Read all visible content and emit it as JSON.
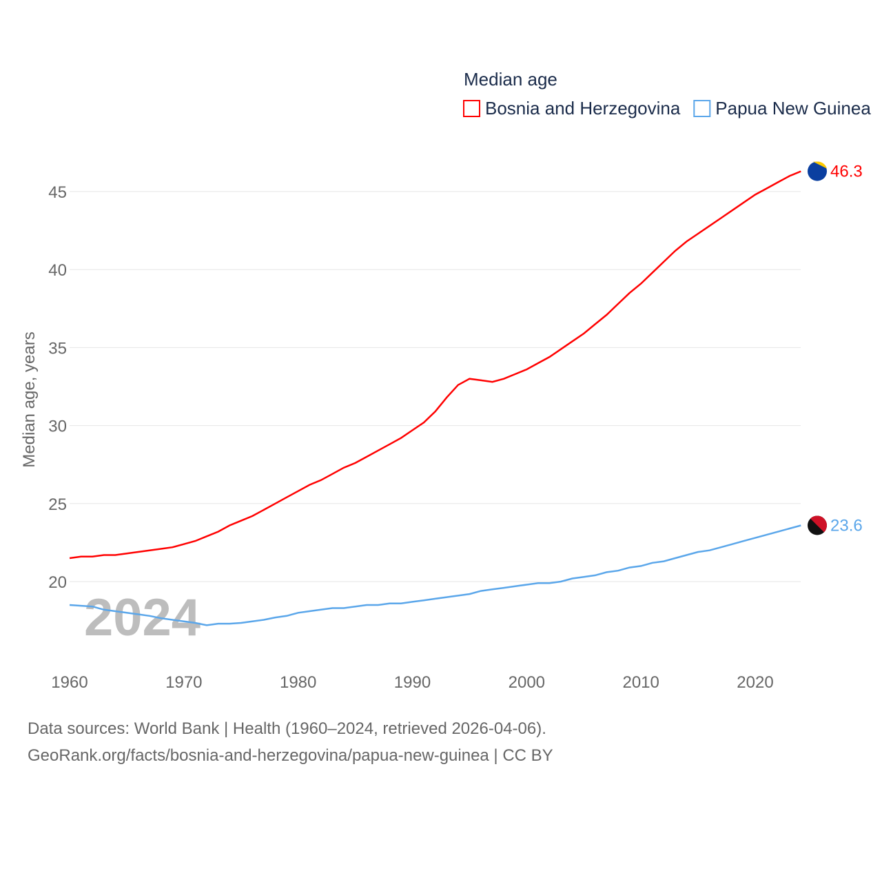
{
  "chart_data": {
    "type": "line",
    "title": "Median age",
    "ylabel": "Median age, years",
    "xlabel": "",
    "ylim": [
      15.5,
      47.5
    ],
    "xlim": [
      1960,
      2024
    ],
    "grid": true,
    "legend_placement": "top-right",
    "yticks": [
      20,
      25,
      30,
      35,
      40,
      45
    ],
    "xticks": [
      1960,
      1970,
      1980,
      1990,
      2000,
      2010,
      2020
    ],
    "watermark": "2024",
    "x": [
      1960,
      1961,
      1962,
      1963,
      1964,
      1965,
      1966,
      1967,
      1968,
      1969,
      1970,
      1971,
      1972,
      1973,
      1974,
      1975,
      1976,
      1977,
      1978,
      1979,
      1980,
      1981,
      1982,
      1983,
      1984,
      1985,
      1986,
      1987,
      1988,
      1989,
      1990,
      1991,
      1992,
      1993,
      1994,
      1995,
      1996,
      1997,
      1998,
      1999,
      2000,
      2001,
      2002,
      2003,
      2004,
      2005,
      2006,
      2007,
      2008,
      2009,
      2010,
      2011,
      2012,
      2013,
      2014,
      2015,
      2016,
      2017,
      2018,
      2019,
      2020,
      2021,
      2022,
      2023,
      2024
    ],
    "series": [
      {
        "name": "Bosnia and Herzegovina",
        "color": "#ff0000",
        "end_label": "46.3",
        "values": [
          21.5,
          21.6,
          21.6,
          21.7,
          21.7,
          21.8,
          21.9,
          22.0,
          22.1,
          22.2,
          22.4,
          22.6,
          22.9,
          23.2,
          23.6,
          23.9,
          24.2,
          24.6,
          25.0,
          25.4,
          25.8,
          26.2,
          26.5,
          26.9,
          27.3,
          27.6,
          28.0,
          28.4,
          28.8,
          29.2,
          29.7,
          30.2,
          30.9,
          31.8,
          32.6,
          33.0,
          32.9,
          32.8,
          33.0,
          33.3,
          33.6,
          34.0,
          34.4,
          34.9,
          35.4,
          35.9,
          36.5,
          37.1,
          37.8,
          38.5,
          39.1,
          39.8,
          40.5,
          41.2,
          41.8,
          42.3,
          42.8,
          43.3,
          43.8,
          44.3,
          44.8,
          45.2,
          45.6,
          46.0,
          46.3
        ]
      },
      {
        "name": "Papua New Guinea",
        "color": "#5aa6ea",
        "end_label": "23.6",
        "values": [
          18.5,
          18.45,
          18.4,
          18.2,
          18.1,
          18.0,
          17.9,
          17.8,
          17.65,
          17.55,
          17.45,
          17.35,
          17.2,
          17.3,
          17.3,
          17.35,
          17.45,
          17.55,
          17.7,
          17.8,
          18.0,
          18.1,
          18.2,
          18.3,
          18.3,
          18.4,
          18.5,
          18.5,
          18.6,
          18.6,
          18.7,
          18.8,
          18.9,
          19.0,
          19.1,
          19.2,
          19.4,
          19.5,
          19.6,
          19.7,
          19.8,
          19.9,
          19.9,
          20.0,
          20.2,
          20.3,
          20.4,
          20.6,
          20.7,
          20.9,
          21.0,
          21.2,
          21.3,
          21.5,
          21.7,
          21.9,
          22.0,
          22.2,
          22.4,
          22.6,
          22.8,
          23.0,
          23.2,
          23.4,
          23.6
        ]
      }
    ]
  },
  "footer": {
    "line1": "Data sources: World Bank | Health (1960–2024, retrieved 2026-04-06).",
    "line2": "GeoRank.org/facts/bosnia-and-herzegovina/papua-new-guinea | CC BY"
  }
}
